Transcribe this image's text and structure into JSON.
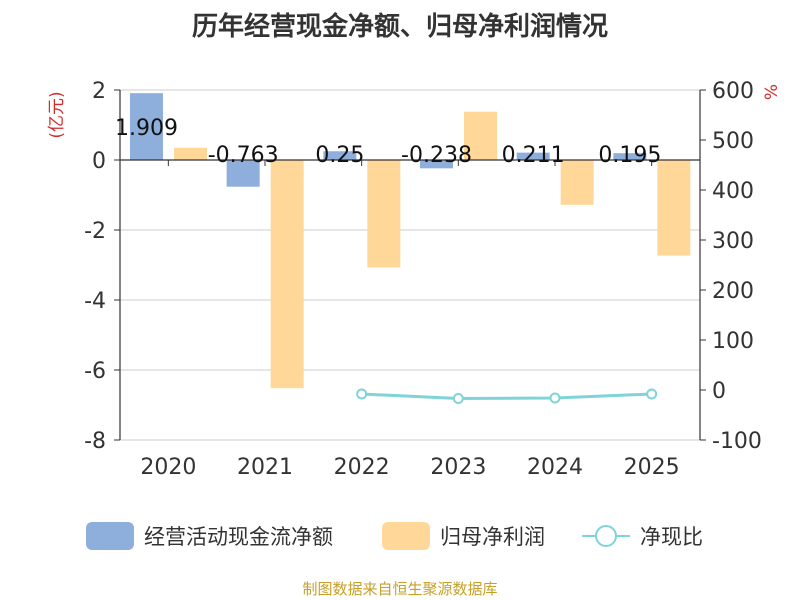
{
  "title": "历年经营现金净额、归母净利润情况",
  "source": "制图数据来自恒生聚源数据库",
  "chart_data": {
    "type": "bar",
    "categories": [
      "2020",
      "2021",
      "2022",
      "2023",
      "2024",
      "2025"
    ],
    "series": [
      {
        "name": "经营活动现金流净额",
        "type": "bar",
        "axis": "left",
        "color": "#8eaedb",
        "values": [
          1.909,
          -0.763,
          0.25,
          -0.238,
          0.211,
          0.195
        ]
      },
      {
        "name": "归母净利润",
        "type": "bar",
        "axis": "left",
        "color": "#ffd899",
        "values": [
          0.35,
          -6.52,
          -3.07,
          1.38,
          -1.28,
          -2.73
        ]
      },
      {
        "name": "净现比",
        "type": "line",
        "axis": "right",
        "color": "#7fd3d9",
        "values": [
          null,
          null,
          -8,
          -17,
          -16,
          -8
        ]
      }
    ],
    "data_labels": [
      "1.909",
      "-0.763",
      "0.25",
      "-0.238",
      "0.211",
      "0.195"
    ],
    "left_axis": {
      "label": "(亿元)",
      "min": -8,
      "max": 2,
      "ticks": [
        2,
        0,
        -2,
        -4,
        -6,
        -8
      ]
    },
    "right_axis": {
      "label": "%",
      "min": -100,
      "max": 600,
      "ticks": [
        600,
        500,
        400,
        300,
        200,
        100,
        0,
        -100
      ]
    },
    "grid": true,
    "legend_position": "bottom"
  }
}
